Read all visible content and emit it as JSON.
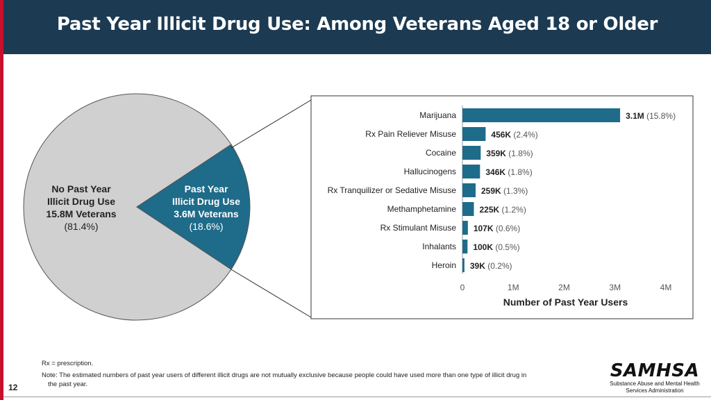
{
  "header": {
    "title": "Past Year Illicit Drug Use: Among Veterans Aged 18 or Older"
  },
  "chart_data": [
    {
      "type": "pie",
      "categories": [
        "No Past Year Illicit Drug Use",
        "Past Year Illicit Drug Use"
      ],
      "values": [
        81.4,
        18.6
      ],
      "labels": [
        {
          "lines": [
            "No Past Year",
            "Illicit Drug Use",
            "15.8M Veterans"
          ],
          "pct": "(81.4%)"
        },
        {
          "lines": [
            "Past Year",
            "Illicit Drug Use",
            "3.6M Veterans"
          ],
          "pct": "(18.6%)"
        }
      ],
      "colors": [
        "#d0d0d0",
        "#1e6b8a"
      ]
    },
    {
      "type": "bar",
      "orientation": "horizontal",
      "categories": [
        "Marijuana",
        "Rx Pain Reliever Misuse",
        "Cocaine",
        "Hallucinogens",
        "Rx Tranquilizer or Sedative Misuse",
        "Methamphetamine",
        "Rx Stimulant Misuse",
        "Inhalants",
        "Heroin"
      ],
      "values": [
        3.1,
        0.456,
        0.359,
        0.346,
        0.259,
        0.225,
        0.107,
        0.1,
        0.039
      ],
      "value_labels": [
        "3.1M",
        "456K",
        "359K",
        "346K",
        "259K",
        "225K",
        "107K",
        "100K",
        "39K"
      ],
      "pct_labels": [
        "(15.8%)",
        "(2.4%)",
        "(1.8%)",
        "(1.8%)",
        "(1.3%)",
        "(1.2%)",
        "(0.6%)",
        "(0.5%)",
        "(0.2%)"
      ],
      "xlabel": "Number of Past Year Users",
      "xlim": [
        0,
        4
      ],
      "xticks": [
        0,
        1,
        2,
        3,
        4
      ],
      "xtick_labels": [
        "0",
        "1M",
        "2M",
        "3M",
        "4M"
      ],
      "bar_color": "#1e6b8a"
    }
  ],
  "footer": {
    "rx_note": "Rx = prescription.",
    "note_line1": "Note: The estimated numbers of past year users of different illicit drugs are not mutually exclusive because people could have used more than one type of illicit drug in",
    "note_line2": "the past year."
  },
  "page_number": "12",
  "logo": {
    "main": "SAMHSA",
    "sub_line1": "Substance Abuse and Mental Health",
    "sub_line2": "Services Administration"
  }
}
